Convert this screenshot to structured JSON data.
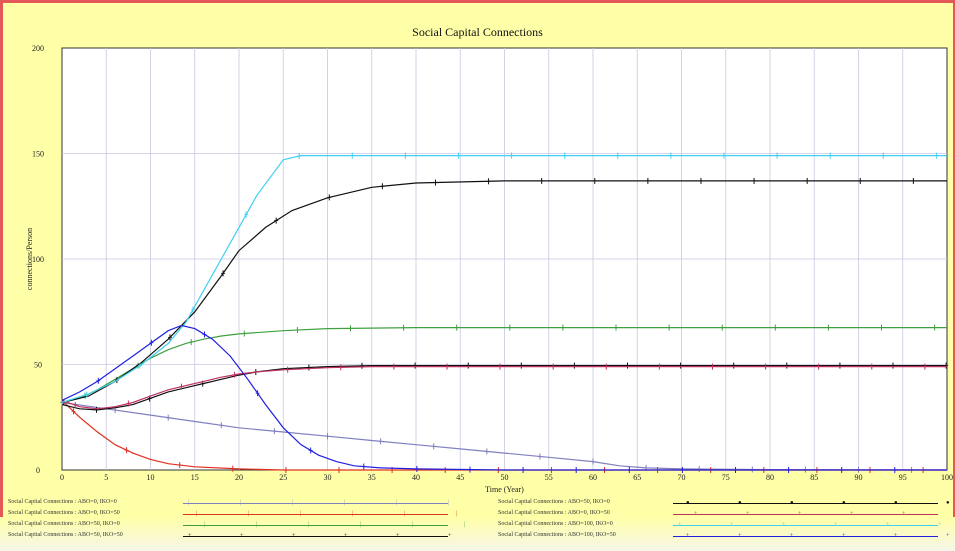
{
  "chart_data": {
    "type": "line",
    "title": "Social Capital Connections",
    "xlabel": "Time (Year)",
    "ylabel": "connections/Person",
    "xlim": [
      0,
      100
    ],
    "ylim": [
      0,
      200
    ],
    "x_ticks": [
      "0",
      "5",
      "10",
      "15",
      "20",
      "25",
      "30",
      "35",
      "40",
      "45",
      "50",
      "55",
      "60",
      "65",
      "70",
      "75",
      "80",
      "85",
      "90",
      "95",
      "100"
    ],
    "y_ticks": [
      "0",
      "50",
      "100",
      "150",
      "200"
    ],
    "grid": true,
    "legend_position": "bottom",
    "series": [
      {
        "name": "Social Capital Connections : ABO=0, IKO=0",
        "color": "#8080c0",
        "points": [
          [
            0,
            32
          ],
          [
            5,
            29
          ],
          [
            10,
            26
          ],
          [
            15,
            23
          ],
          [
            20,
            20
          ],
          [
            25,
            18
          ],
          [
            30,
            16
          ],
          [
            35,
            14
          ],
          [
            40,
            12
          ],
          [
            45,
            10
          ],
          [
            50,
            8
          ],
          [
            55,
            6
          ],
          [
            60,
            4
          ],
          [
            63,
            2
          ],
          [
            66,
            1
          ],
          [
            70,
            0.5
          ],
          [
            80,
            0.2
          ],
          [
            90,
            0.1
          ],
          [
            100,
            0
          ]
        ]
      },
      {
        "name": "Social Capital Connections : ABO=0, IKO=50",
        "color": "#e03020",
        "points": [
          [
            0,
            33
          ],
          [
            2,
            25
          ],
          [
            4,
            18
          ],
          [
            6,
            12
          ],
          [
            8,
            8
          ],
          [
            10,
            5
          ],
          [
            12,
            3
          ],
          [
            15,
            1.5
          ],
          [
            20,
            0.5
          ],
          [
            25,
            0
          ],
          [
            100,
            0
          ]
        ]
      },
      {
        "name": "Social Capital Connections : ABO=50, IKO=0",
        "color": "#40a040",
        "points": [
          [
            0,
            32
          ],
          [
            2,
            34
          ],
          [
            4,
            38
          ],
          [
            6,
            43
          ],
          [
            8,
            48
          ],
          [
            10,
            53
          ],
          [
            12,
            57
          ],
          [
            14,
            60
          ],
          [
            16,
            62
          ],
          [
            18,
            63.5
          ],
          [
            20,
            64.5
          ],
          [
            25,
            66
          ],
          [
            30,
            67
          ],
          [
            40,
            67.5
          ],
          [
            60,
            67.5
          ],
          [
            80,
            67.5
          ],
          [
            100,
            67.5
          ]
        ]
      },
      {
        "name": "Social Capital Connections : ABO=50, IKO=50",
        "color": "#101010",
        "points": [
          [
            0,
            31
          ],
          [
            2,
            29
          ],
          [
            4,
            28.5
          ],
          [
            6,
            29.5
          ],
          [
            8,
            31
          ],
          [
            10,
            34
          ],
          [
            12,
            37
          ],
          [
            14,
            39
          ],
          [
            16,
            41
          ],
          [
            18,
            43
          ],
          [
            20,
            45
          ],
          [
            22,
            46.5
          ],
          [
            25,
            48
          ],
          [
            30,
            49
          ],
          [
            35,
            49.5
          ],
          [
            40,
            49.5
          ],
          [
            60,
            49.5
          ],
          [
            80,
            49.5
          ],
          [
            100,
            49.5
          ]
        ]
      },
      {
        "name": "Social Capital Connections : ABO=50, IKO=0",
        "color": "#101010",
        "points": [
          [
            0,
            32
          ],
          [
            3,
            35
          ],
          [
            6,
            42
          ],
          [
            9,
            51
          ],
          [
            12,
            62
          ],
          [
            15,
            75
          ],
          [
            18,
            92
          ],
          [
            20,
            104
          ],
          [
            23,
            115
          ],
          [
            26,
            123
          ],
          [
            30,
            129
          ],
          [
            35,
            134
          ],
          [
            40,
            136
          ],
          [
            50,
            137
          ],
          [
            60,
            137
          ],
          [
            80,
            137
          ],
          [
            100,
            137
          ]
        ]
      },
      {
        "name": "Social Capital Connections : ABO=0, IKO=50",
        "color": "#c03060",
        "points": [
          [
            0,
            33
          ],
          [
            2,
            30
          ],
          [
            4,
            29
          ],
          [
            6,
            30
          ],
          [
            8,
            32
          ],
          [
            10,
            35
          ],
          [
            12,
            38
          ],
          [
            14,
            40
          ],
          [
            16,
            42
          ],
          [
            18,
            44
          ],
          [
            20,
            45.5
          ],
          [
            22,
            46.5
          ],
          [
            25,
            47.5
          ],
          [
            30,
            48.5
          ],
          [
            35,
            49
          ],
          [
            40,
            49
          ],
          [
            60,
            49
          ],
          [
            80,
            49
          ],
          [
            100,
            49
          ]
        ]
      },
      {
        "name": "Social Capital Connections : ABO=100, IKO=0",
        "color": "#40d0f0",
        "points": [
          [
            0,
            32
          ],
          [
            3,
            36
          ],
          [
            6,
            42
          ],
          [
            9,
            50
          ],
          [
            12,
            60
          ],
          [
            14,
            70
          ],
          [
            16,
            85
          ],
          [
            18,
            100
          ],
          [
            20,
            115
          ],
          [
            22,
            130
          ],
          [
            25,
            147
          ],
          [
            27,
            149
          ],
          [
            30,
            149
          ],
          [
            40,
            149
          ],
          [
            60,
            149
          ],
          [
            80,
            149
          ],
          [
            100,
            149
          ]
        ]
      },
      {
        "name": "Social Capital Connections : ABO=100, IKO=50",
        "color": "#2020e0",
        "points": [
          [
            0,
            33
          ],
          [
            2,
            37
          ],
          [
            4,
            42
          ],
          [
            6,
            48
          ],
          [
            8,
            54
          ],
          [
            10,
            60
          ],
          [
            12,
            66
          ],
          [
            13.5,
            68.5
          ],
          [
            15,
            67
          ],
          [
            17,
            62
          ],
          [
            19,
            54
          ],
          [
            21,
            43
          ],
          [
            23,
            31
          ],
          [
            25,
            20
          ],
          [
            27,
            12
          ],
          [
            29,
            7
          ],
          [
            31,
            4
          ],
          [
            33,
            2
          ],
          [
            36,
            1
          ],
          [
            40,
            0.5
          ],
          [
            50,
            0
          ],
          [
            100,
            0
          ]
        ]
      }
    ]
  },
  "legend": [
    {
      "label": "Social Capital Connections : ABO=0, IKO=0",
      "color": "#8080c0",
      "marker": "|"
    },
    {
      "label": "Social Capital Connections : ABO=0, IKO=50",
      "color": "#e03020",
      "marker": "|"
    },
    {
      "label": "Social Capital Connections : ABO=50, IKO=0",
      "color": "#40a040",
      "marker": "|"
    },
    {
      "label": "Social Capital Connections : ABO=50, IKO=50",
      "color": "#101010",
      "marker": "+"
    },
    {
      "label": "Social Capital Connections : ABO=50, IKO=0",
      "color": "#101010",
      "marker": "●"
    },
    {
      "label": "Social Capital Connections : ABO=0, IKO=50",
      "color": "#c03060",
      "marker": "+"
    },
    {
      "label": "Social Capital Connections : ABO=100, IKO=0",
      "color": "#40d0f0",
      "marker": "+"
    },
    {
      "label": "Social Capital Connections : ABO=100, IKO=50",
      "color": "#2020e0",
      "marker": "+"
    }
  ]
}
